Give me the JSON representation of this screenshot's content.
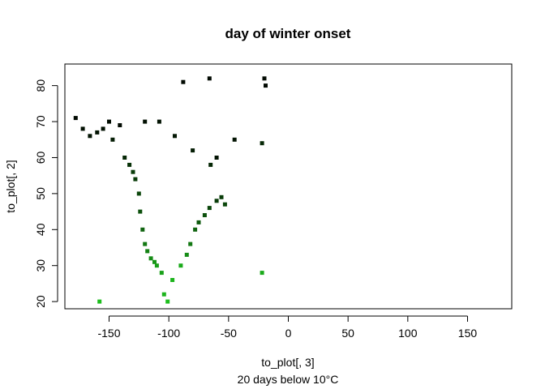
{
  "chart_data": {
    "type": "scatter",
    "title": "day of winter onset",
    "xlabel": "to_plot[, 3]",
    "ylabel": "to_plot[, 2]",
    "subtitle": "20 days below 10°C",
    "xlim": [
      -187,
      187
    ],
    "ylim": [
      18,
      86
    ],
    "xticks": [
      -150,
      -100,
      -50,
      0,
      50,
      100,
      150
    ],
    "yticks": [
      20,
      30,
      40,
      50,
      60,
      70,
      80
    ],
    "grid": false,
    "legend": "none",
    "marker": "filled square",
    "color_scale": [
      "#000000",
      "#1fc81f"
    ],
    "points": [
      [
        -178,
        71,
        0.05
      ],
      [
        -172,
        68,
        0.08
      ],
      [
        -166,
        66,
        0.1
      ],
      [
        -160,
        67,
        0.1
      ],
      [
        -155,
        68,
        0.08
      ],
      [
        -150,
        70,
        0.06
      ],
      [
        -147,
        65,
        0.15
      ],
      [
        -141,
        69,
        0.05
      ],
      [
        -137,
        60,
        0.2
      ],
      [
        -133,
        58,
        0.25
      ],
      [
        -130,
        56,
        0.3
      ],
      [
        -128,
        54,
        0.3
      ],
      [
        -125,
        50,
        0.35
      ],
      [
        -124,
        45,
        0.4
      ],
      [
        -122,
        40,
        0.5
      ],
      [
        -120,
        36,
        0.6
      ],
      [
        -118,
        34,
        0.65
      ],
      [
        -115,
        32,
        0.7
      ],
      [
        -112,
        31,
        0.75
      ],
      [
        -110,
        30,
        0.8
      ],
      [
        -106,
        28,
        0.8
      ],
      [
        -104,
        22,
        0.9
      ],
      [
        -101,
        20,
        0.95
      ],
      [
        -97,
        26,
        0.9
      ],
      [
        -90,
        30,
        0.85
      ],
      [
        -85,
        33,
        0.7
      ],
      [
        -82,
        36,
        0.6
      ],
      [
        -78,
        40,
        0.5
      ],
      [
        -75,
        42,
        0.45
      ],
      [
        -70,
        44,
        0.4
      ],
      [
        -66,
        46,
        0.35
      ],
      [
        -60,
        48,
        0.3
      ],
      [
        -56,
        49,
        0.3
      ],
      [
        -53,
        47,
        0.35
      ],
      [
        -65,
        58,
        0.2
      ],
      [
        -80,
        62,
        0.15
      ],
      [
        -95,
        66,
        0.12
      ],
      [
        -108,
        70,
        0.1
      ],
      [
        -120,
        70,
        0.08
      ],
      [
        -88,
        81,
        0.05
      ],
      [
        -66,
        82,
        0.05
      ],
      [
        -60,
        60,
        0.1
      ],
      [
        -45,
        65,
        0.1
      ],
      [
        -22,
        64,
        0.2
      ],
      [
        -20,
        82,
        0.05
      ],
      [
        -19,
        80,
        0.05
      ],
      [
        -22,
        28,
        0.85
      ],
      [
        -158,
        20,
        0.95
      ]
    ]
  }
}
